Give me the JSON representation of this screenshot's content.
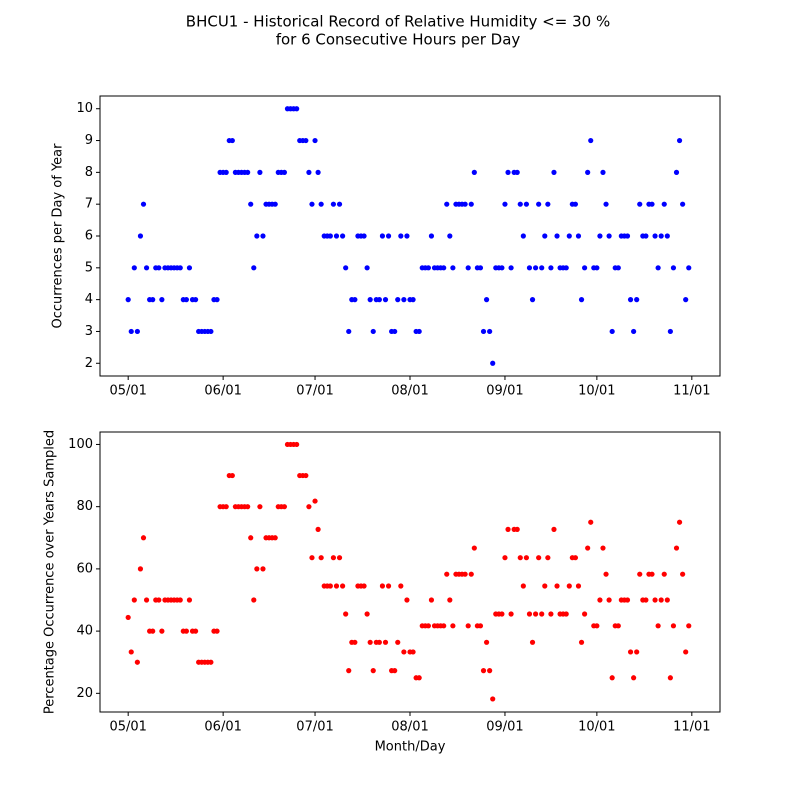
{
  "chart_data": [
    {
      "type": "scatter",
      "title": "BHCU1 - Historical Record of Relative Humidity <= 30 %",
      "subtitle": "for 6 Consecutive Hours per Day",
      "ylabel": "Occurrences per Day of Year",
      "color": "#0000ff",
      "x": [
        0,
        1,
        2,
        3,
        4,
        5,
        6,
        7,
        8,
        9,
        10,
        11,
        12,
        13,
        14,
        15,
        16,
        17,
        18,
        19,
        20,
        21,
        22,
        23,
        24,
        25,
        26,
        27,
        28,
        29,
        30,
        31,
        32,
        33,
        34,
        35,
        36,
        37,
        38,
        39,
        40,
        41,
        42,
        43,
        44,
        45,
        46,
        47,
        48,
        49,
        50,
        51,
        52,
        53,
        54,
        55,
        56,
        57,
        58,
        59,
        60,
        61,
        62,
        63,
        64,
        65,
        66,
        67,
        68,
        69,
        70,
        71,
        72,
        73,
        74,
        75,
        76,
        77,
        78,
        79,
        80,
        81,
        82,
        83,
        84,
        85,
        86,
        87,
        88,
        89,
        90,
        91,
        92,
        93,
        94,
        95,
        96,
        97,
        98,
        99,
        100,
        101,
        102,
        103,
        104,
        105,
        106,
        107,
        108,
        109,
        110,
        111,
        112,
        113,
        114,
        115,
        116,
        117,
        118,
        119,
        120,
        121,
        122,
        123,
        124,
        125,
        126,
        127,
        128,
        129,
        130,
        131,
        132,
        133,
        134,
        135,
        136,
        137,
        138,
        139,
        140,
        141,
        142,
        143,
        144,
        145,
        146,
        147,
        148,
        149,
        150,
        151,
        152,
        153,
        154,
        155,
        156,
        157,
        158,
        159,
        160,
        161,
        162,
        163,
        164,
        165,
        166,
        167,
        168,
        169,
        170,
        171,
        172,
        173,
        174,
        175,
        176,
        177,
        178,
        179,
        180,
        181,
        182,
        183
      ],
      "values": [
        4,
        3,
        5,
        3,
        6,
        7,
        5,
        4,
        4,
        5,
        5,
        4,
        5,
        5,
        5,
        5,
        5,
        5,
        4,
        4,
        5,
        4,
        4,
        3,
        3,
        3,
        3,
        3,
        4,
        4,
        8,
        8,
        8,
        9,
        9,
        8,
        8,
        8,
        8,
        8,
        7,
        5,
        6,
        8,
        6,
        7,
        7,
        7,
        7,
        8,
        8,
        8,
        10,
        10,
        10,
        10,
        9,
        9,
        9,
        8,
        7,
        9,
        8,
        7,
        6,
        6,
        6,
        7,
        6,
        7,
        6,
        5,
        3,
        4,
        4,
        6,
        6,
        6,
        5,
        4,
        3,
        4,
        4,
        6,
        4,
        6,
        3,
        3,
        4,
        6,
        4,
        6,
        4,
        4,
        3,
        3,
        5,
        5,
        5,
        6,
        5,
        5,
        5,
        5,
        7,
        6,
        5,
        7,
        7,
        7,
        7,
        5,
        7,
        8,
        5,
        5,
        3,
        4,
        3,
        2,
        5,
        5,
        5,
        7,
        8,
        5,
        8,
        8,
        7,
        6,
        7,
        5,
        4,
        5,
        7,
        5,
        6,
        7,
        5,
        8,
        6,
        5,
        5,
        5,
        6,
        7,
        7,
        6,
        4,
        5,
        8,
        9,
        5,
        5,
        6,
        8,
        7,
        6,
        3,
        5,
        5,
        6,
        6,
        6,
        4,
        3,
        4,
        7,
        6,
        6,
        7,
        7,
        6,
        5,
        6,
        7,
        6,
        3,
        5,
        8,
        9,
        7,
        4,
        5
      ],
      "xlim": [
        -9.2,
        193.2
      ],
      "xticks": [
        {
          "value": 0,
          "label": "05/01"
        },
        {
          "value": 31,
          "label": "06/01"
        },
        {
          "value": 61,
          "label": "07/01"
        },
        {
          "value": 92,
          "label": "08/01"
        },
        {
          "value": 123,
          "label": "09/01"
        },
        {
          "value": 153,
          "label": "10/01"
        },
        {
          "value": 184,
          "label": "11/01"
        }
      ],
      "ylim": [
        1.6,
        10.4
      ],
      "yticks": [
        2,
        3,
        4,
        5,
        6,
        7,
        8,
        9,
        10
      ]
    },
    {
      "type": "scatter",
      "ylabel": "Percentage Occurrence over Years Sampled",
      "xlabel": "Month/Day",
      "color": "#ff0000",
      "x": [
        0,
        1,
        2,
        3,
        4,
        5,
        6,
        7,
        8,
        9,
        10,
        11,
        12,
        13,
        14,
        15,
        16,
        17,
        18,
        19,
        20,
        21,
        22,
        23,
        24,
        25,
        26,
        27,
        28,
        29,
        30,
        31,
        32,
        33,
        34,
        35,
        36,
        37,
        38,
        39,
        40,
        41,
        42,
        43,
        44,
        45,
        46,
        47,
        48,
        49,
        50,
        51,
        52,
        53,
        54,
        55,
        56,
        57,
        58,
        59,
        60,
        61,
        62,
        63,
        64,
        65,
        66,
        67,
        68,
        69,
        70,
        71,
        72,
        73,
        74,
        75,
        76,
        77,
        78,
        79,
        80,
        81,
        82,
        83,
        84,
        85,
        86,
        87,
        88,
        89,
        90,
        91,
        92,
        93,
        94,
        95,
        96,
        97,
        98,
        99,
        100,
        101,
        102,
        103,
        104,
        105,
        106,
        107,
        108,
        109,
        110,
        111,
        112,
        113,
        114,
        115,
        116,
        117,
        118,
        119,
        120,
        121,
        122,
        123,
        124,
        125,
        126,
        127,
        128,
        129,
        130,
        131,
        132,
        133,
        134,
        135,
        136,
        137,
        138,
        139,
        140,
        141,
        142,
        143,
        144,
        145,
        146,
        147,
        148,
        149,
        150,
        151,
        152,
        153,
        154,
        155,
        156,
        157,
        158,
        159,
        160,
        161,
        162,
        163,
        164,
        165,
        166,
        167,
        168,
        169,
        170,
        171,
        172,
        173,
        174,
        175,
        176,
        177,
        178,
        179,
        180,
        181,
        182,
        183
      ],
      "values": [
        44.4,
        33.3,
        50,
        30,
        60,
        70,
        50,
        40,
        40,
        50,
        50,
        40,
        50,
        50,
        50,
        50,
        50,
        50,
        40,
        40,
        50,
        40,
        40,
        30,
        30,
        30,
        30,
        30,
        40,
        40,
        80,
        80,
        80,
        90,
        90,
        80,
        80,
        80,
        80,
        80,
        70,
        50,
        60,
        80,
        60,
        70,
        70,
        70,
        70,
        80,
        80,
        80,
        100,
        100,
        100,
        100,
        90,
        90,
        90,
        80,
        63.6,
        81.8,
        72.7,
        63.6,
        54.5,
        54.5,
        54.5,
        63.6,
        54.5,
        63.6,
        54.5,
        45.5,
        27.3,
        36.4,
        36.4,
        54.5,
        54.5,
        54.5,
        45.5,
        36.4,
        27.3,
        36.4,
        36.4,
        54.5,
        36.4,
        54.5,
        27.3,
        27.3,
        36.4,
        54.5,
        33.3,
        50,
        33.3,
        33.3,
        25,
        25,
        41.7,
        41.7,
        41.7,
        50,
        41.7,
        41.7,
        41.7,
        41.7,
        58.3,
        50,
        41.7,
        58.3,
        58.3,
        58.3,
        58.3,
        41.7,
        58.3,
        66.7,
        41.7,
        41.7,
        27.3,
        36.4,
        27.3,
        18.2,
        45.5,
        45.5,
        45.5,
        63.6,
        72.7,
        45.5,
        72.7,
        72.7,
        63.6,
        54.5,
        63.6,
        45.5,
        36.4,
        45.5,
        63.6,
        45.5,
        54.5,
        63.6,
        45.5,
        72.7,
        54.5,
        45.5,
        45.5,
        45.5,
        54.5,
        63.6,
        63.6,
        54.5,
        36.4,
        45.5,
        66.7,
        75,
        41.7,
        41.7,
        50,
        66.7,
        58.3,
        50,
        25,
        41.7,
        41.7,
        50,
        50,
        50,
        33.3,
        25,
        33.3,
        58.3,
        50,
        50,
        58.3,
        58.3,
        50,
        41.7,
        50,
        58.3,
        50,
        25,
        41.7,
        66.7,
        75,
        58.3,
        33.3,
        41.7
      ],
      "xlim": [
        -9.2,
        193.2
      ],
      "xticks": [
        {
          "value": 0,
          "label": "05/01"
        },
        {
          "value": 31,
          "label": "06/01"
        },
        {
          "value": 61,
          "label": "07/01"
        },
        {
          "value": 92,
          "label": "08/01"
        },
        {
          "value": 123,
          "label": "09/01"
        },
        {
          "value": 153,
          "label": "10/01"
        },
        {
          "value": 184,
          "label": "11/01"
        }
      ],
      "ylim": [
        14,
        104
      ],
      "yticks": [
        20,
        40,
        60,
        80,
        100
      ]
    }
  ]
}
